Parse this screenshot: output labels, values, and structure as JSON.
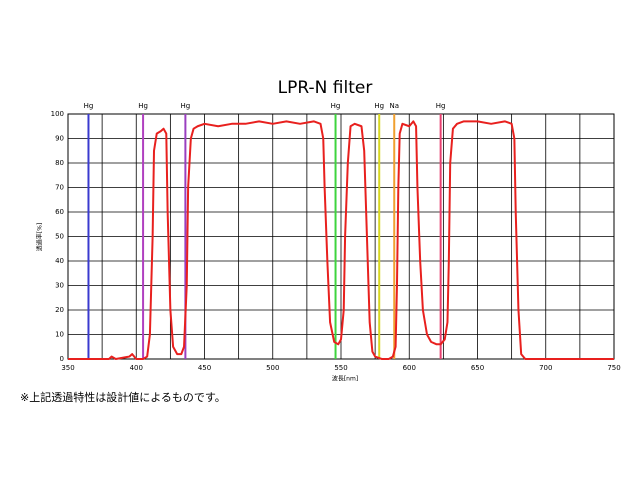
{
  "chart_data": {
    "type": "line",
    "title": "LPR-N filter",
    "x_label": "波長[nm]",
    "y_label": "透過率[%]",
    "note": "※上記透過特性は設計値によるものです。",
    "xlim": [
      350,
      750
    ],
    "xticks": [
      350,
      400,
      450,
      500,
      550,
      600,
      650,
      700,
      750
    ],
    "ylim": [
      0,
      100
    ],
    "yticks": [
      0,
      10,
      20,
      30,
      40,
      50,
      60,
      70,
      80,
      90,
      100
    ],
    "grid": true,
    "x": [
      350,
      380,
      382,
      385,
      395,
      397,
      400,
      405,
      408,
      410,
      412,
      413,
      415,
      418,
      420,
      422,
      423,
      425,
      427,
      430,
      433,
      435,
      437,
      438,
      440,
      442,
      445,
      450,
      460,
      470,
      480,
      490,
      500,
      510,
      520,
      530,
      535,
      537,
      538,
      540,
      542,
      545,
      548,
      550,
      552,
      553,
      555,
      557,
      560,
      565,
      567,
      569,
      571,
      573,
      575,
      580,
      585,
      588,
      590,
      591,
      592,
      593,
      595,
      600,
      603,
      605,
      606,
      608,
      610,
      613,
      616,
      620,
      623,
      626,
      628,
      629,
      630,
      632,
      635,
      640,
      650,
      660,
      670,
      675,
      677,
      678,
      680,
      682,
      685,
      700,
      750
    ],
    "series": [
      {
        "name": "LPR-N",
        "color": "#e8201e",
        "values": [
          0,
          0,
          1,
          0,
          1,
          2,
          0,
          0,
          1,
          10,
          50,
          85,
          92,
          93,
          94,
          92,
          60,
          20,
          5,
          2,
          2,
          5,
          30,
          70,
          90,
          94,
          95,
          96,
          95,
          96,
          96,
          97,
          96,
          97,
          96,
          97,
          96,
          90,
          70,
          40,
          15,
          7,
          6,
          8,
          20,
          50,
          80,
          95,
          96,
          95,
          85,
          50,
          15,
          3,
          1,
          0,
          0,
          1,
          5,
          30,
          70,
          92,
          96,
          95,
          97,
          95,
          70,
          40,
          20,
          10,
          7,
          6,
          6,
          8,
          15,
          40,
          80,
          94,
          96,
          97,
          97,
          96,
          97,
          96,
          90,
          60,
          20,
          2,
          0,
          0,
          0
        ]
      }
    ],
    "spectral_lines": [
      {
        "label": "Hg",
        "x": 365,
        "color": "#3a3acf"
      },
      {
        "label": "Hg",
        "x": 405,
        "color": "#b040c0"
      },
      {
        "label": "Hg",
        "x": 436,
        "color": "#9a3fc0"
      },
      {
        "label": "Hg",
        "x": 546,
        "color": "#3ed43e"
      },
      {
        "label": "Hg",
        "x": 578,
        "color": "#d8d820"
      },
      {
        "label": "Na",
        "x": 589,
        "color": "#f0a030"
      },
      {
        "label": "Hg",
        "x": 623,
        "color": "#e84070"
      }
    ]
  }
}
